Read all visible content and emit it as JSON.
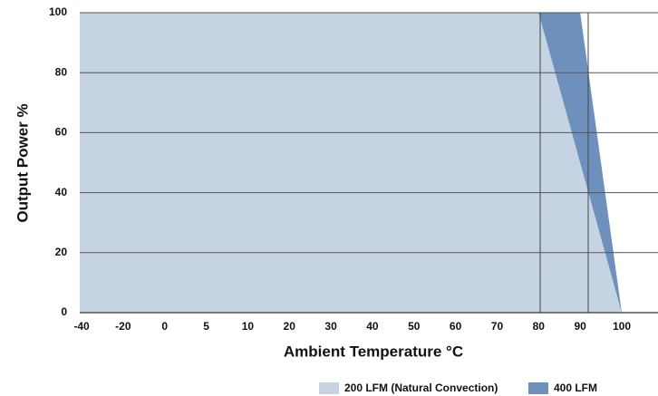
{
  "chart_data": {
    "type": "area",
    "x_label": "Ambient Temperature °C",
    "y_label": "Output Power %",
    "categories": [
      "-40",
      "-20",
      "0",
      "5",
      "10",
      "20",
      "30",
      "40",
      "50",
      "60",
      "70",
      "80",
      "90",
      "100"
    ],
    "series": [
      {
        "name": "400 LFM",
        "color": "#6e90bd",
        "values": [
          100,
          100,
          100,
          100,
          100,
          100,
          100,
          100,
          100,
          100,
          100,
          100,
          100,
          0
        ]
      },
      {
        "name": "200 LFM (Natural Convection)",
        "color": "#c6d3e2",
        "values": [
          100,
          100,
          100,
          100,
          100,
          100,
          100,
          100,
          100,
          100,
          100,
          100,
          50,
          0
        ]
      }
    ],
    "ylim": [
      0,
      100
    ],
    "yticks": [
      0,
      20,
      40,
      60,
      80,
      100
    ],
    "grid": true
  }
}
